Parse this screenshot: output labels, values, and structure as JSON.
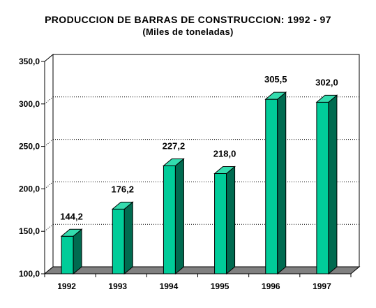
{
  "chart_data": {
    "type": "bar",
    "title": "PRODUCCION DE BARRAS DE CONSTRUCCION: 1992 - 97",
    "subtitle": "(Miles de toneladas)",
    "categories": [
      "1992",
      "1993",
      "1994",
      "1995",
      "1996",
      "1997"
    ],
    "values": [
      144.2,
      176.2,
      227.2,
      218.0,
      305.5,
      302.0
    ],
    "data_labels": [
      "144,2",
      "176,2",
      "227,2",
      "218,0",
      "305,5",
      "302,0"
    ],
    "ylim": [
      100,
      350
    ],
    "yticks": [
      "100,0",
      "150,0",
      "200,0",
      "250,0",
      "300,0",
      "350,0"
    ],
    "grid": true,
    "legend": "none",
    "colors": {
      "bar_front": "#00cc99",
      "bar_side": "#006b50",
      "bar_top": "#33dcae",
      "floor": "#808080"
    }
  }
}
